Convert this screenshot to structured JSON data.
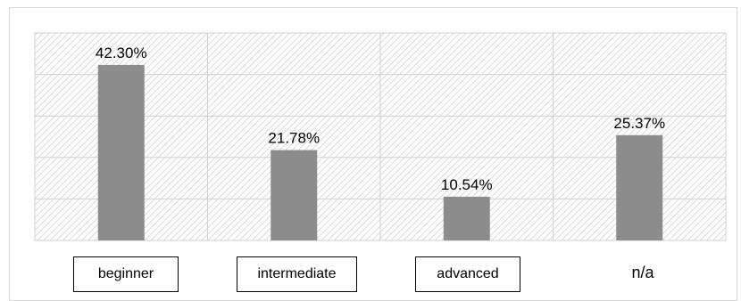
{
  "chart_data": {
    "type": "bar",
    "categories": [
      "beginner",
      "intermediate",
      "advanced",
      "n/a"
    ],
    "values": [
      42.3,
      21.78,
      10.54,
      25.37
    ],
    "data_labels": [
      "42.30%",
      "21.78%",
      "10.54%",
      "25.37%"
    ],
    "ylim": [
      0,
      50
    ],
    "grid": true,
    "legend": "none",
    "title": "",
    "xlabel": "",
    "ylabel": "",
    "colors": {
      "bar": "#8c8c8c",
      "hatch": "#d9d9d9",
      "gridline": "#d0d0d0"
    }
  }
}
